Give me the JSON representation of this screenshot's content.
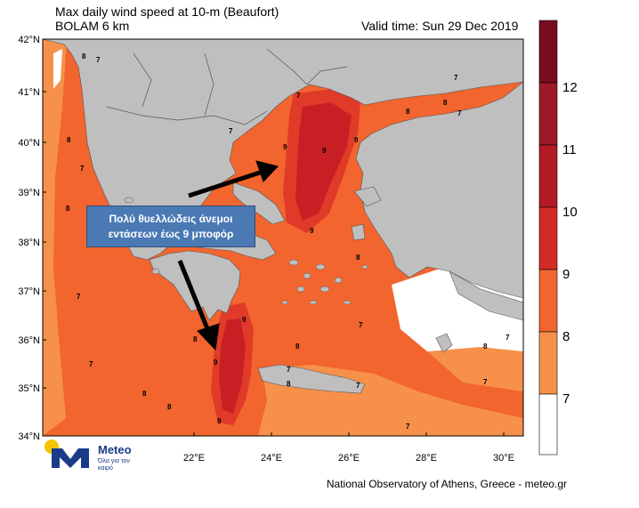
{
  "header": {
    "title_line1": "Max daily wind speed at 10-m (Beaufort)",
    "title_line2": "BOLAM 6 km",
    "valid_time": "Valid time: Sun 29 Dec 2019"
  },
  "axes": {
    "lat_ticks": [
      "42°N",
      "41°N",
      "40°N",
      "39°N",
      "38°N",
      "37°N",
      "36°N",
      "35°N",
      "34°N"
    ],
    "lon_ticks": [
      "22°E",
      "24°E",
      "26°E",
      "28°E",
      "30°E"
    ]
  },
  "colorbar": {
    "labels": [
      "12",
      "11",
      "10",
      "9",
      "8",
      "7"
    ],
    "colors": [
      "#7a0c20",
      "#9e1a2a",
      "#c81f25",
      "#e03a28",
      "#f2652e",
      "#f7914a",
      "#ffffff"
    ]
  },
  "map_labels": {
    "contour_values": [
      "7",
      "8",
      "9"
    ]
  },
  "annotation": {
    "line1": "Πολύ θυελλώδεις άνεμοι",
    "line2": "εντάσεων έως 9 μποφόρ"
  },
  "logo": {
    "name": "Meteo",
    "tagline": "Όλα για τον καιρό"
  },
  "credit": "National Observatory of Athens, Greece - meteo.gr",
  "colors": {
    "land": "#bfbfbf",
    "sea_b7": "#f7914a",
    "sea_b8": "#f2652e",
    "sea_b9": "#e03a28",
    "sea_b10": "#c81f25",
    "arrow": "#000000"
  }
}
